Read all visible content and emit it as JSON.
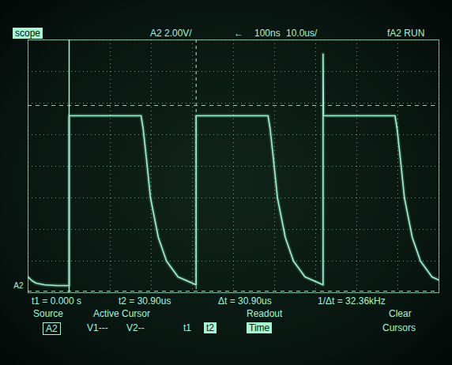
{
  "chart_data": {
    "type": "line",
    "color": "#9ff7d3",
    "line_style": "solid",
    "grid": true,
    "tick_labels": false,
    "xlim": [
      -10,
      90
    ],
    "ylim": [
      0,
      16
    ],
    "xticks": [
      -10,
      0,
      10,
      20,
      30,
      40,
      50,
      60,
      70,
      80,
      90
    ],
    "yticks": [
      0,
      2,
      4,
      6,
      8,
      10,
      12,
      14,
      16
    ],
    "x": [
      -10,
      -9,
      -8,
      -6,
      -3,
      0,
      0,
      17.5,
      18.0,
      18.8,
      19.8,
      21.7,
      23.7,
      26.5,
      30.9,
      30.9,
      48.4,
      48.9,
      49.7,
      50.7,
      52.6,
      54.6,
      57.4,
      61.8,
      61.8,
      61.9,
      79.3,
      79.8,
      80.6,
      81.6,
      83.5,
      85.5,
      88.3,
      90
    ],
    "values": [
      1.0,
      0.75,
      0.6,
      0.5,
      0.45,
      0.45,
      11.2,
      11.2,
      10.4,
      8.5,
      6.0,
      3.5,
      2.0,
      1.0,
      0.5,
      11.2,
      11.2,
      10.4,
      8.5,
      6.0,
      3.5,
      2.0,
      1.0,
      0.5,
      15.1,
      11.2,
      11.2,
      10.4,
      8.5,
      6.0,
      3.5,
      2.0,
      1.0,
      0.8
    ],
    "time_cursors": [
      0,
      30.9
    ],
    "voltage_cursors": [
      0.1,
      11.85
    ],
    "channel_marker": {
      "label": "A2",
      "value": 0.45
    },
    "annotations": {
      "header": {
        "menu": "scope",
        "channel": "A2 2.00V/",
        "delay_arrow": "←",
        "delay": "100ns",
        "timebase": "10.0us/",
        "trigger": "fA2 RUN"
      },
      "readout": [
        "t1 = 0.000 s",
        "t2 = 30.90us",
        "Δt = 30.90us",
        "1/Δt = 32.36kHz"
      ],
      "softkeys": [
        {
          "label": "Source",
          "value": [
            "A2"
          ],
          "selected": "A2"
        },
        {
          "label": "Active Cursor",
          "value": [
            "V1---",
            "V2--",
            "t1",
            "t2"
          ],
          "selected": "t2"
        },
        {
          "label": "Readout",
          "value": [
            "Time"
          ],
          "selected": "Time"
        },
        {
          "label": "Clear",
          "value": [
            "Cursors"
          ],
          "selected": null
        }
      ]
    }
  }
}
